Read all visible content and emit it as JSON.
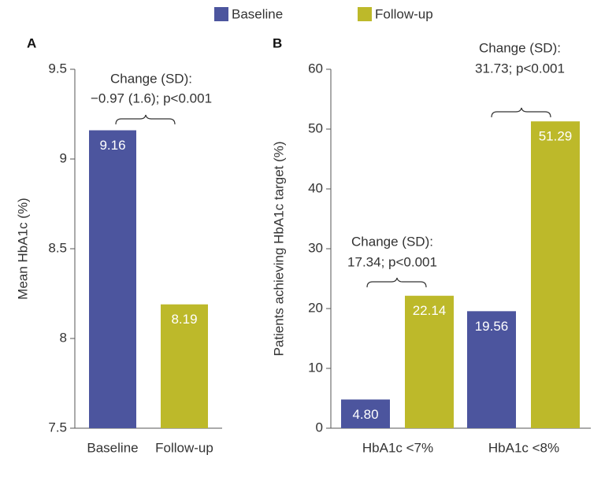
{
  "chart_data": [
    {
      "type": "bar",
      "panel": "A",
      "ylabel": "Mean HbA1c (%)",
      "categories": [
        "Baseline",
        "Follow-up"
      ],
      "values": [
        9.16,
        8.19
      ],
      "colors": [
        "#4c559e",
        "#bdb92a"
      ],
      "ylim": [
        7.5,
        9.5
      ],
      "yticks": [
        7.5,
        8,
        8.5,
        9,
        9.5
      ],
      "annotations": [
        {
          "lines": [
            "Change (SD):",
            "−0.97 (1.6); p<0.001"
          ]
        }
      ]
    },
    {
      "type": "grouped_bar",
      "panel": "B",
      "ylabel": "Patients achieving HbA1c target (%)",
      "categories": [
        "HbA1c <7%",
        "HbA1c <8%"
      ],
      "series": [
        {
          "name": "Baseline",
          "color": "#4c559e",
          "values": [
            4.8,
            19.56
          ],
          "value_labels": [
            "4.80",
            "19.56"
          ]
        },
        {
          "name": "Follow-up",
          "color": "#bdb92a",
          "values": [
            22.14,
            51.29
          ],
          "value_labels": [
            "22.14",
            "51.29"
          ]
        }
      ],
      "ylim": [
        0,
        60
      ],
      "yticks": [
        0,
        10,
        20,
        30,
        40,
        50,
        60
      ],
      "annotations": [
        {
          "lines": [
            "Change (SD):",
            "17.34; p<0.001"
          ]
        },
        {
          "lines": [
            "Change (SD):",
            "31.73; p<0.001"
          ]
        }
      ]
    }
  ]
}
